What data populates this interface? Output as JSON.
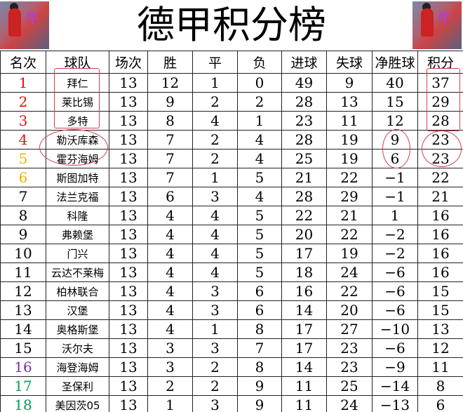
{
  "title": "德甲积分榜",
  "headers": [
    "名次",
    "球队",
    "场次",
    "胜",
    "平",
    "负",
    "进球",
    "失球",
    "净胜球",
    "积分"
  ],
  "rank_colors": {
    "1": "#e01010",
    "2": "#e01010",
    "3": "#e01010",
    "4": "#e01010",
    "5": "#f0b000",
    "6": "#f0b000",
    "16": "#7030a0",
    "17": "#00a050",
    "18": "#00a050"
  },
  "rows": [
    [
      "1",
      "拜仁",
      "13",
      "12",
      "1",
      "0",
      "49",
      "9",
      "40",
      "37"
    ],
    [
      "2",
      "莱比锡",
      "13",
      "9",
      "2",
      "2",
      "28",
      "13",
      "15",
      "29"
    ],
    [
      "3",
      "多特",
      "13",
      "8",
      "4",
      "1",
      "23",
      "11",
      "12",
      "28"
    ],
    [
      "4",
      "勒沃库森",
      "13",
      "7",
      "2",
      "4",
      "28",
      "19",
      "9",
      "23"
    ],
    [
      "5",
      "霍芬海姆",
      "13",
      "7",
      "2",
      "4",
      "25",
      "19",
      "6",
      "23"
    ],
    [
      "6",
      "斯图加特",
      "13",
      "7",
      "1",
      "5",
      "21",
      "22",
      "−1",
      "22"
    ],
    [
      "7",
      "法兰克福",
      "13",
      "6",
      "3",
      "4",
      "28",
      "29",
      "−1",
      "21"
    ],
    [
      "8",
      "科隆",
      "13",
      "4",
      "4",
      "5",
      "22",
      "21",
      "1",
      "16"
    ],
    [
      "9",
      "弗赖堡",
      "13",
      "4",
      "4",
      "5",
      "20",
      "22",
      "−2",
      "16"
    ],
    [
      "10",
      "门兴",
      "13",
      "4",
      "4",
      "5",
      "17",
      "19",
      "−2",
      "16"
    ],
    [
      "11",
      "云达不莱梅",
      "13",
      "4",
      "4",
      "5",
      "18",
      "24",
      "−6",
      "16"
    ],
    [
      "12",
      "柏林联合",
      "13",
      "4",
      "3",
      "6",
      "16",
      "22",
      "−6",
      "15"
    ],
    [
      "13",
      "汉堡",
      "13",
      "4",
      "3",
      "6",
      "14",
      "20",
      "−6",
      "15"
    ],
    [
      "14",
      "奥格斯堡",
      "13",
      "4",
      "1",
      "8",
      "17",
      "27",
      "−10",
      "13"
    ],
    [
      "15",
      "沃尔夫",
      "13",
      "3",
      "3",
      "7",
      "17",
      "23",
      "−6",
      "12"
    ],
    [
      "16",
      "海登海姆",
      "13",
      "3",
      "2",
      "8",
      "14",
      "23",
      "−9",
      "11"
    ],
    [
      "17",
      "圣保利",
      "13",
      "2",
      "2",
      "9",
      "11",
      "25",
      "−14",
      "8"
    ],
    [
      "18",
      "美因茨05",
      "13",
      "1",
      "3",
      "9",
      "11",
      "24",
      "−13",
      "6"
    ]
  ]
}
